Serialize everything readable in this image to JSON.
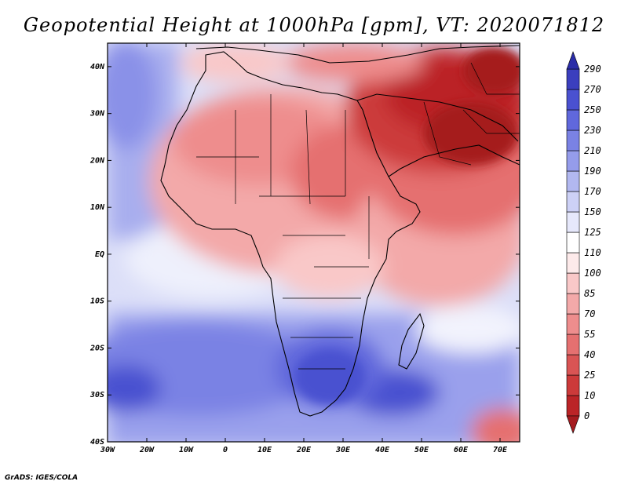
{
  "figure": {
    "title": "Geopotential Height at 1000hPa [gpm], VT: 2020071812",
    "credit": "GrADS: IGES/COLA"
  },
  "axes": {
    "lon_range": [
      -30,
      75
    ],
    "lat_range": [
      -40,
      45
    ],
    "lon_ticks": [
      "30W",
      "20W",
      "10W",
      "0",
      "10E",
      "20E",
      "30E",
      "40E",
      "50E",
      "60E",
      "70E"
    ],
    "lat_ticks": [
      "40N",
      "30N",
      "20N",
      "10N",
      "EQ",
      "10S",
      "20S",
      "30S",
      "40S"
    ]
  },
  "colorbar": {
    "levels": [
      "0",
      "10",
      "25",
      "40",
      "55",
      "70",
      "85",
      "100",
      "110",
      "125",
      "150",
      "170",
      "190",
      "210",
      "230",
      "250",
      "270",
      "290"
    ],
    "colors": [
      "#a51b1f",
      "#bb2427",
      "#cc3a3a",
      "#d95454",
      "#e57070",
      "#ee8d8d",
      "#f3a9a9",
      "#f9c8c8",
      "#fdeaea",
      "#ffffff",
      "#e6e8fb",
      "#cdd1f6",
      "#b2b8f0",
      "#959ceb",
      "#7a82e4",
      "#6068dc",
      "#4a51d0",
      "#3b3fbe",
      "#2b2da8"
    ]
  }
}
